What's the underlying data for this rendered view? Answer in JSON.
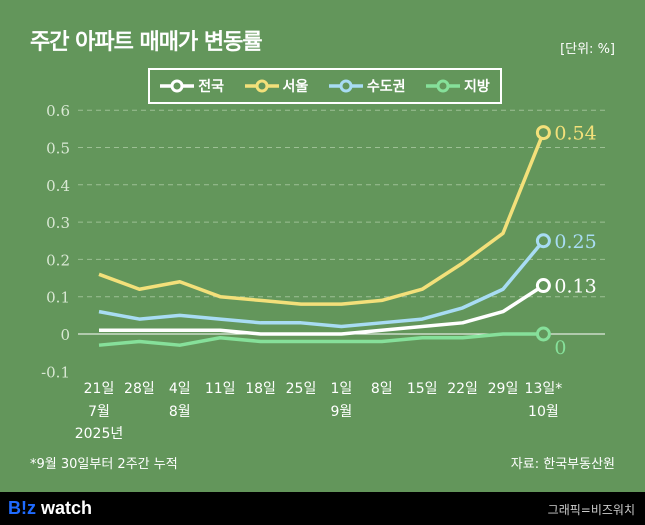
{
  "chart_data": {
    "type": "line",
    "title": "주간 아파트 매매가 변동률",
    "unit": "[단위: %]",
    "categories": [
      "21일",
      "28일",
      "4일",
      "11일",
      "18일",
      "25일",
      "1일",
      "8일",
      "15일",
      "22일",
      "29일",
      "13일*"
    ],
    "month_labels": [
      {
        "index": 0,
        "text": "7월"
      },
      {
        "index": 2,
        "text": "8월"
      },
      {
        "index": 6,
        "text": "9월"
      },
      {
        "index": 11,
        "text": "10월"
      }
    ],
    "year_label": {
      "index": 0,
      "text": "2025년"
    },
    "ylim": [
      -0.1,
      0.6
    ],
    "yticks": [
      "-0.1",
      "0",
      "0.1",
      "0.2",
      "0.3",
      "0.4",
      "0.5",
      "0.6"
    ],
    "series": [
      {
        "name": "전국",
        "color": "#ffffff",
        "values": [
          0.01,
          0.01,
          0.01,
          0.01,
          0,
          0,
          0,
          0.01,
          0.02,
          0.03,
          0.06,
          0.13
        ],
        "end_label": "0.13"
      },
      {
        "name": "서울",
        "color": "#f3e07a",
        "values": [
          0.16,
          0.12,
          0.14,
          0.1,
          0.09,
          0.08,
          0.08,
          0.09,
          0.12,
          0.19,
          0.27,
          0.54
        ],
        "end_label": "0.54"
      },
      {
        "name": "수도권",
        "color": "#a8dcf3",
        "values": [
          0.06,
          0.04,
          0.05,
          0.04,
          0.03,
          0.03,
          0.02,
          0.03,
          0.04,
          0.07,
          0.12,
          0.25
        ],
        "end_label": "0.25"
      },
      {
        "name": "지방",
        "color": "#86e09a",
        "values": [
          -0.03,
          -0.02,
          -0.03,
          -0.01,
          -0.02,
          -0.02,
          -0.02,
          -0.02,
          -0.01,
          -0.01,
          0,
          0
        ],
        "end_label": "0"
      }
    ]
  },
  "note": "*9월 30일부터 2주간 누적",
  "source": "자료: 한국부동산원",
  "footer": {
    "logo_b": "B!z",
    "logo_rest": " watch",
    "credit": "그래픽=비즈워치"
  }
}
